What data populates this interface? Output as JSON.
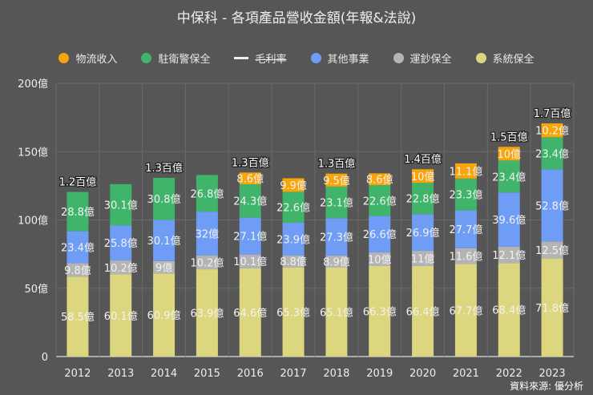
{
  "chart_data": {
    "type": "bar",
    "stacked": true,
    "title": "中保科 - 各項產品營收金額(年報&法說)",
    "categories": [
      "2012",
      "2013",
      "2014",
      "2015",
      "2016",
      "2017",
      "2018",
      "2019",
      "2020",
      "2021",
      "2022",
      "2023"
    ],
    "series": [
      {
        "name": "系統保全",
        "color": "#dcd67e",
        "values": [
          58.5,
          60.1,
          60.9,
          63.9,
          64.6,
          65.3,
          65.1,
          66.3,
          66.4,
          67.7,
          68.4,
          71.8
        ]
      },
      {
        "name": "運鈔保全",
        "color": "#b4b4b4",
        "values": [
          9.8,
          10.2,
          9,
          10.2,
          10.1,
          8.8,
          8.9,
          10,
          11,
          11.6,
          12.1,
          12.5
        ]
      },
      {
        "name": "其他事業",
        "color": "#6f9cf5",
        "values": [
          23.4,
          25.8,
          30.1,
          32,
          27.1,
          23.9,
          27.3,
          26.6,
          26.9,
          27.7,
          39.6,
          52.8
        ]
      },
      {
        "name": "駐衛警保全",
        "color": "#3fb46a",
        "values": [
          28.8,
          30.1,
          30.8,
          26.8,
          24.3,
          22.6,
          23.1,
          22.6,
          22.8,
          23.3,
          23.4,
          23.4
        ]
      },
      {
        "name": "物流收入",
        "color": "#f8a50c",
        "values": [
          null,
          null,
          null,
          null,
          8.6,
          9.9,
          9.5,
          8.6,
          10,
          11.1,
          10,
          10.2
        ]
      }
    ],
    "value_unit": "億",
    "total_labels": [
      "1.2百億",
      "",
      "1.3百億",
      "",
      "1.3百億",
      "",
      "1.3百億",
      "",
      "1.4百億",
      "",
      "1.5百億",
      "1.7百億"
    ],
    "legend": [
      {
        "name": "物流收入",
        "color": "#f8a50c",
        "marker": "dot"
      },
      {
        "name": "駐衛警保全",
        "color": "#3fb46a",
        "marker": "dot"
      },
      {
        "name": "毛利率",
        "color": "#eeeeee",
        "marker": "line",
        "hidden": true
      },
      {
        "name": "其他事業",
        "color": "#6f9cf5",
        "marker": "dot"
      },
      {
        "name": "運鈔保全",
        "color": "#b4b4b4",
        "marker": "dot"
      },
      {
        "name": "系統保全",
        "color": "#dcd67e",
        "marker": "dot"
      }
    ],
    "legend_position": "top",
    "yticks": [
      "0",
      "50億",
      "100億",
      "150億",
      "200億"
    ],
    "ylim": [
      0,
      200
    ],
    "grid": true
  },
  "source": "資料來源: 優分析"
}
